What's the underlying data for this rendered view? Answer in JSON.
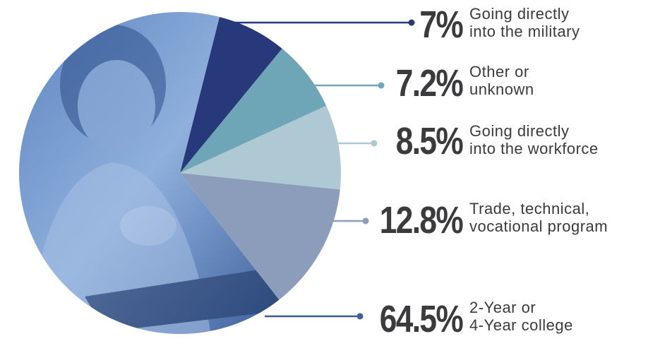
{
  "chart_data": {
    "type": "pie",
    "categories": [
      "Going directly\ninto the military",
      "Other or\nunknown",
      "Going directly\ninto the workforce",
      "Trade, technical,\nvocational program",
      "2-Year or\n4-Year college"
    ],
    "values": [
      7,
      7.2,
      8.5,
      12.8,
      64.5
    ],
    "value_labels": [
      "7%",
      "7.2%",
      "8.5%",
      "12.8%",
      "64.5%"
    ],
    "colors": [
      "#27397a",
      "#6ea5b7",
      "#aec8d4",
      "#8b9dba",
      "#6f95c9"
    ]
  }
}
